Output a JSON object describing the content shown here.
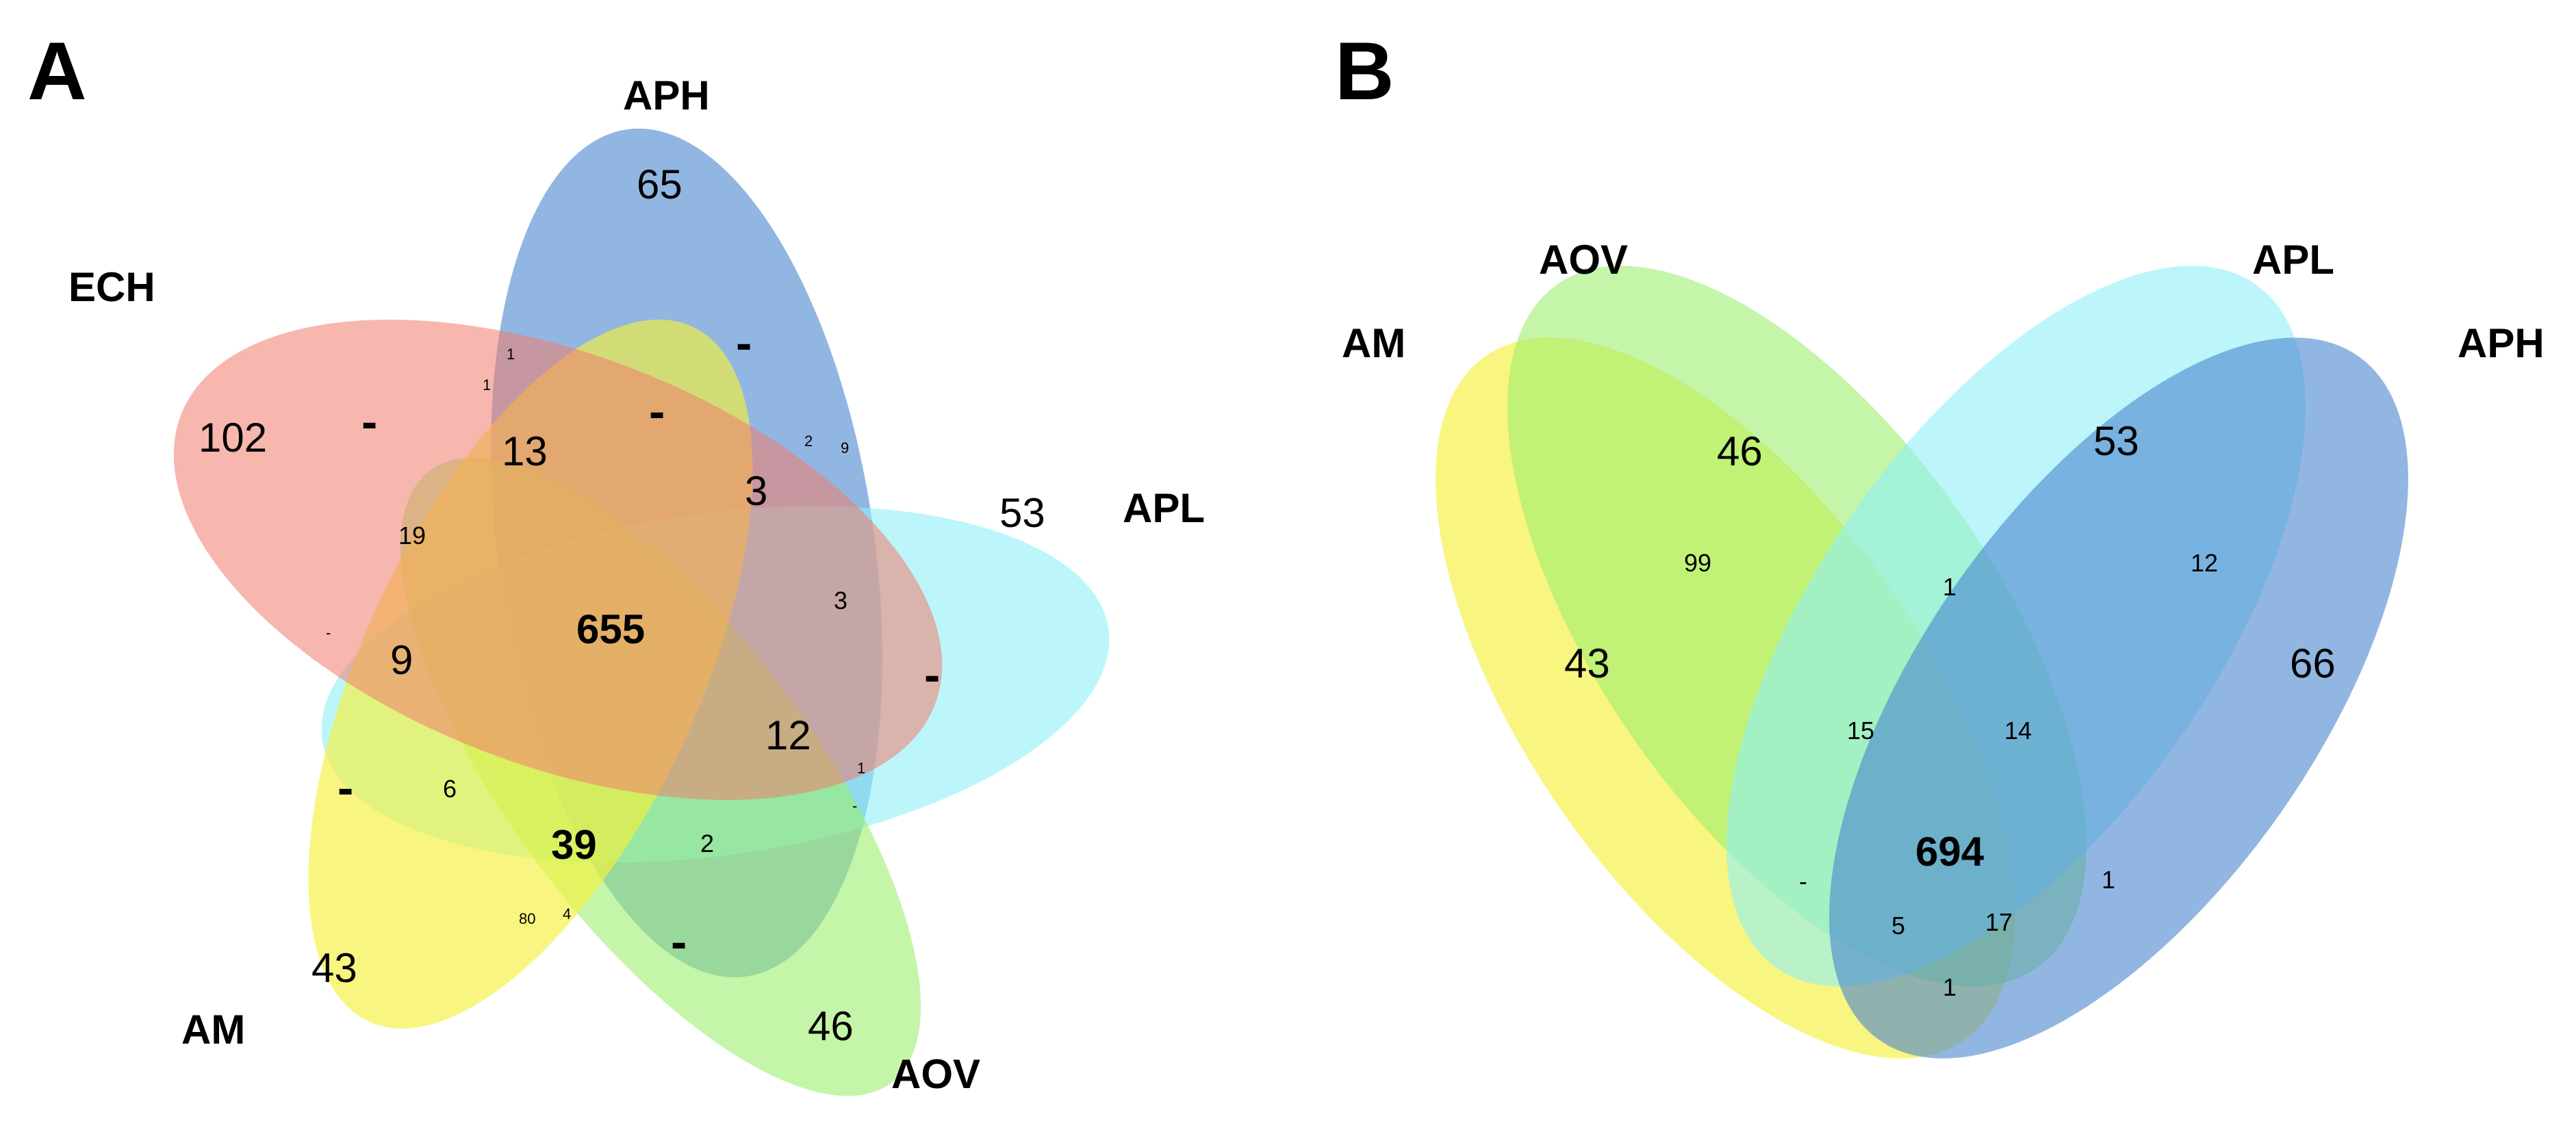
{
  "panels": {
    "a": {
      "label": "A",
      "sets": [
        {
          "name": "APH",
          "color": "#4a86cf",
          "opacity": 0.6
        },
        {
          "name": "APL",
          "color": "#8ff0f6",
          "opacity": 0.6
        },
        {
          "name": "AOV",
          "color": "#9cef6e",
          "opacity": 0.6
        },
        {
          "name": "AM",
          "color": "#f4f13c",
          "opacity": 0.65
        },
        {
          "name": "ECH",
          "color": "#f07b6c",
          "opacity": 0.55
        }
      ],
      "values": {
        "aph_only": "65",
        "ech_only": "102",
        "apl_only": "53",
        "am_only": "43",
        "aov_only": "46",
        "core": "655",
        "v39": "39",
        "v13": "13",
        "v3": "3",
        "v12": "12",
        "v9": "9",
        "v19": "19",
        "v6": "6",
        "v2": "2",
        "v3b": "3",
        "v80": "80",
        "v4": "4",
        "v1a": "1",
        "v1b": "1",
        "v2s": "2",
        "v9s": "9",
        "v1c": "1",
        "dash": "-"
      }
    },
    "b": {
      "label": "B",
      "sets": [
        {
          "name": "AM",
          "color": "#f4f13c",
          "opacity": 0.65
        },
        {
          "name": "AOV",
          "color": "#9cef6e",
          "opacity": 0.6
        },
        {
          "name": "APL",
          "color": "#8ff0f6",
          "opacity": 0.6
        },
        {
          "name": "APH",
          "color": "#4a86cf",
          "opacity": 0.6
        }
      ],
      "values": {
        "aov_only": "46",
        "apl_only": "53",
        "am_only": "43",
        "aph_only": "66",
        "v99": "99",
        "v1": "1",
        "v12": "12",
        "v15": "15",
        "v14": "14",
        "core": "694",
        "dash": "-",
        "v5": "5",
        "v17": "17",
        "v1r": "1",
        "v1bottom": "1"
      }
    }
  }
}
